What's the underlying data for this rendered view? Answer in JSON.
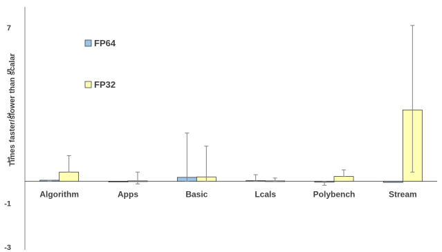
{
  "chart_data": {
    "type": "bar",
    "title": "",
    "xlabel": "",
    "ylabel": "Times faster/slower than scalar",
    "ylim": [
      -3,
      8
    ],
    "yticks": [
      7,
      5,
      3,
      1,
      -1,
      -3
    ],
    "grid": false,
    "legend_position": "top-left",
    "categories": [
      "Algorithm",
      "Apps",
      "Basic",
      "Lcals",
      "Polybench",
      "Stream"
    ],
    "series": [
      {
        "name": "FP64",
        "color": "#9dc3e6",
        "values": [
          0.05,
          -0.03,
          0.18,
          0.03,
          -0.04,
          -0.05
        ],
        "error_low": [
          0.0,
          0.0,
          0.0,
          0.0,
          -0.18,
          0.0
        ],
        "error_high": [
          0.05,
          0.0,
          2.2,
          0.3,
          0.0,
          0.0
        ]
      },
      {
        "name": "FP32",
        "color": "#ffffb3",
        "values": [
          0.42,
          0.02,
          0.2,
          0.02,
          0.22,
          3.25
        ],
        "error_low": [
          0.42,
          -0.12,
          0.0,
          0.0,
          0.22,
          0.42
        ],
        "error_high": [
          1.17,
          0.42,
          1.6,
          0.15,
          0.52,
          7.1
        ]
      }
    ]
  }
}
